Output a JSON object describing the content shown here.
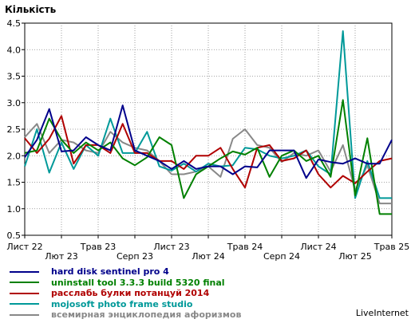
{
  "chart_data": {
    "type": "line",
    "ylabel": "Кількість",
    "ylim": [
      0.5,
      4.5
    ],
    "y_ticks": [
      "0.5",
      "1.0",
      "1.5",
      "2.0",
      "2.5",
      "3.0",
      "3.5",
      "4.0",
      "4.5"
    ],
    "x_ticks_row1": [
      {
        "label": "Лист 22",
        "i": 0
      },
      {
        "label": "Трав 23",
        "i": 6
      },
      {
        "label": "Лист 23",
        "i": 12
      },
      {
        "label": "Трав 24",
        "i": 18
      },
      {
        "label": "Лист 24",
        "i": 24
      },
      {
        "label": "Трав 25",
        "i": 30
      }
    ],
    "x_ticks_row2": [
      {
        "label": "Лют 23",
        "i": 3
      },
      {
        "label": "Серп 23",
        "i": 9
      },
      {
        "label": "Лют 24",
        "i": 15
      },
      {
        "label": "Серп 24",
        "i": 21
      },
      {
        "label": "Лют 25",
        "i": 27
      }
    ],
    "grid": true,
    "series": [
      {
        "name": "hard disk sentinel pro 4",
        "color": "#00008b",
        "values": [
          1.97,
          2.3,
          2.88,
          2.08,
          2.1,
          2.35,
          2.2,
          2.1,
          2.95,
          2.1,
          2.0,
          1.9,
          1.75,
          1.9,
          1.75,
          1.8,
          1.8,
          1.65,
          1.8,
          1.78,
          2.1,
          2.1,
          2.1,
          1.58,
          1.93,
          1.88,
          1.85,
          1.95,
          1.85,
          1.85,
          2.3
        ]
      },
      {
        "name": "uninstall tool 3.3.3 build 5320 final",
        "color": "#008000",
        "values": [
          2.05,
          2.1,
          2.7,
          2.3,
          2.05,
          2.25,
          2.1,
          2.25,
          1.95,
          1.82,
          1.97,
          2.35,
          2.2,
          1.2,
          1.65,
          1.8,
          1.95,
          2.08,
          2.02,
          2.15,
          1.6,
          2.0,
          2.1,
          1.9,
          2.0,
          1.6,
          3.05,
          1.25,
          2.33,
          0.9,
          0.9
        ]
      },
      {
        "name": "расслабь булки потанцуй 2014",
        "color": "#b00000",
        "values": [
          2.33,
          2.05,
          2.32,
          2.75,
          1.85,
          2.2,
          2.2,
          2.05,
          2.6,
          2.05,
          2.05,
          1.9,
          1.9,
          1.75,
          2.0,
          2.0,
          2.15,
          1.75,
          1.4,
          2.15,
          2.2,
          1.9,
          1.95,
          2.1,
          1.65,
          1.4,
          1.62,
          1.48,
          1.7,
          1.9,
          1.95
        ]
      },
      {
        "name": "mojosoft photo frame studio",
        "color": "#009999",
        "values": [
          1.8,
          2.5,
          1.68,
          2.25,
          1.75,
          2.2,
          2.0,
          2.7,
          2.05,
          2.05,
          2.45,
          1.8,
          1.72,
          1.85,
          1.7,
          1.85,
          1.8,
          1.82,
          2.15,
          2.12,
          2.0,
          1.95,
          2.0,
          2.1,
          1.8,
          1.65,
          4.35,
          1.2,
          1.9,
          1.2,
          1.2
        ]
      },
      {
        "name": "всемирная энциклопедия афоризмов",
        "color": "#888888",
        "values": [
          2.35,
          2.6,
          2.05,
          2.3,
          2.25,
          2.1,
          2.05,
          2.45,
          2.25,
          2.15,
          2.1,
          1.9,
          1.65,
          1.65,
          1.7,
          1.8,
          1.6,
          2.32,
          2.5,
          2.2,
          2.15,
          1.88,
          2.05,
          2.0,
          2.1,
          1.7,
          2.2,
          1.35,
          1.82,
          1.1,
          1.1
        ]
      }
    ]
  },
  "brand": "LiveInternet"
}
